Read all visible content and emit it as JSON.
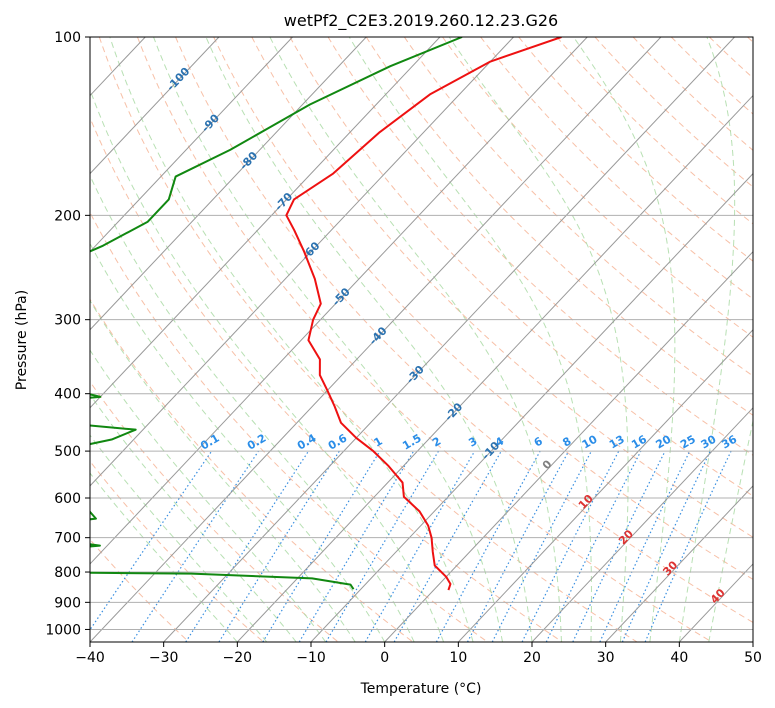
{
  "chart_data": {
    "type": "line",
    "title": "wetPf2_C2E3.2019.260.12.23.G26",
    "xlabel": "Temperature (°C)",
    "ylabel": "Pressure (hPa)",
    "xlim": [
      -40,
      50
    ],
    "ylim": [
      1050,
      100
    ],
    "y_scale": "log",
    "grid": true,
    "x_ticks": [
      "−40",
      "−30",
      "−20",
      "−10",
      "0",
      "10",
      "20",
      "30",
      "40",
      "50"
    ],
    "y_ticks": [
      {
        "p": 100,
        "label": "100"
      },
      {
        "p": 200,
        "label": "200"
      },
      {
        "p": 300,
        "label": "300"
      },
      {
        "p": 400,
        "label": "400"
      },
      {
        "p": 500,
        "label": "500"
      },
      {
        "p": 600,
        "label": "600"
      },
      {
        "p": 700,
        "label": "700"
      },
      {
        "p": 800,
        "label": "800"
      },
      {
        "p": 900,
        "label": "900"
      },
      {
        "p": 1000,
        "label": "1000"
      }
    ],
    "series": [
      {
        "role": "temperature",
        "color": "#ee1111",
        "points": [
          [
            -53.5,
            100
          ],
          [
            -60,
            110
          ],
          [
            -64,
            125
          ],
          [
            -66,
            145
          ],
          [
            -67,
            170
          ],
          [
            -69,
            188
          ],
          [
            -68,
            200
          ],
          [
            -65,
            212
          ],
          [
            -61,
            230
          ],
          [
            -56,
            256
          ],
          [
            -52,
            282
          ],
          [
            -51,
            300
          ],
          [
            -49,
            325
          ],
          [
            -45,
            350
          ],
          [
            -43,
            372
          ],
          [
            -40,
            395
          ],
          [
            -37,
            420
          ],
          [
            -34,
            448
          ],
          [
            -30,
            475
          ],
          [
            -26,
            500
          ],
          [
            -22,
            530
          ],
          [
            -18,
            565
          ],
          [
            -16,
            597
          ],
          [
            -12,
            632
          ],
          [
            -9,
            668
          ],
          [
            -7,
            700
          ],
          [
            -5,
            740
          ],
          [
            -3,
            780
          ],
          [
            0,
            815
          ],
          [
            1.5,
            838
          ],
          [
            2,
            858
          ]
        ]
      },
      {
        "role": "dewpoint",
        "color": "#118811",
        "points": [
          [
            -67,
            100
          ],
          [
            -73,
            112
          ],
          [
            -79,
            130
          ],
          [
            -84,
            155
          ],
          [
            -88,
            172
          ],
          [
            -86,
            188
          ],
          [
            -86,
            205
          ],
          [
            -89,
            225
          ],
          [
            -93,
            245
          ],
          [
            -103,
            262
          ],
          [
            -107,
            270
          ],
          [
            -99,
            280
          ],
          [
            -90,
            298
          ],
          [
            -96,
            312
          ],
          [
            -110,
            320
          ],
          [
            -113,
            347
          ],
          [
            -109,
            360
          ],
          [
            -82,
            378
          ],
          [
            -70,
            405
          ],
          [
            -85,
            422
          ],
          [
            -93,
            432
          ],
          [
            -75,
            445
          ],
          [
            -61,
            460
          ],
          [
            -63,
            478
          ],
          [
            -69,
            500
          ],
          [
            -85,
            525
          ],
          [
            -93,
            565
          ],
          [
            -84,
            575
          ],
          [
            -69,
            592
          ],
          [
            -58,
            612
          ],
          [
            -57,
            630
          ],
          [
            -55,
            650
          ],
          [
            -61,
            665
          ],
          [
            -69,
            690
          ],
          [
            -58,
            705
          ],
          [
            -51,
            722
          ],
          [
            -60,
            740
          ],
          [
            -67,
            755
          ],
          [
            -60,
            775
          ],
          [
            -70,
            798
          ],
          [
            -35,
            805
          ],
          [
            -18,
            820
          ],
          [
            -12,
            840
          ],
          [
            -11,
            855
          ]
        ]
      }
    ],
    "isotherm_labels": [
      {
        "t": -100,
        "label": "-100"
      },
      {
        "t": -90,
        "label": "-90"
      },
      {
        "t": -80,
        "label": "-80"
      },
      {
        "t": -70,
        "label": "-70"
      },
      {
        "t": -60,
        "label": "-60"
      },
      {
        "t": -50,
        "label": "-50"
      },
      {
        "t": -40,
        "label": "-40"
      },
      {
        "t": -30,
        "label": "-30"
      },
      {
        "t": -20,
        "label": "-20"
      },
      {
        "t": -10,
        "label": "-10"
      }
    ],
    "isotherm_labels_warm": [
      {
        "t": 0,
        "label": "0",
        "color": "#808080"
      },
      {
        "t": 10,
        "label": "10",
        "color": "#dd3333"
      },
      {
        "t": 20,
        "label": "20",
        "color": "#dd3333"
      },
      {
        "t": 30,
        "label": "30",
        "color": "#dd3333"
      },
      {
        "t": 40,
        "label": "40",
        "color": "#dd3333"
      }
    ],
    "mixing_ratio_labels": [
      "0.1",
      "0.2",
      "0.4",
      "0.6",
      "1",
      "1.5",
      "2",
      "3",
      "4",
      "6",
      "8",
      "10",
      "13",
      "16",
      "20",
      "25",
      "30",
      "36"
    ],
    "colors": {
      "temperature": "#ee1111",
      "dewpoint": "#118811",
      "isotherm": "#999999",
      "dry_adiabat": "#f4a582",
      "moist_adiabat": "#a6d8a0",
      "mixing_ratio": "#3a8fe0",
      "isotherm_label": "#2b72b0",
      "mixing_label": "#2a8de8",
      "grid": "#b0b0b0"
    }
  }
}
